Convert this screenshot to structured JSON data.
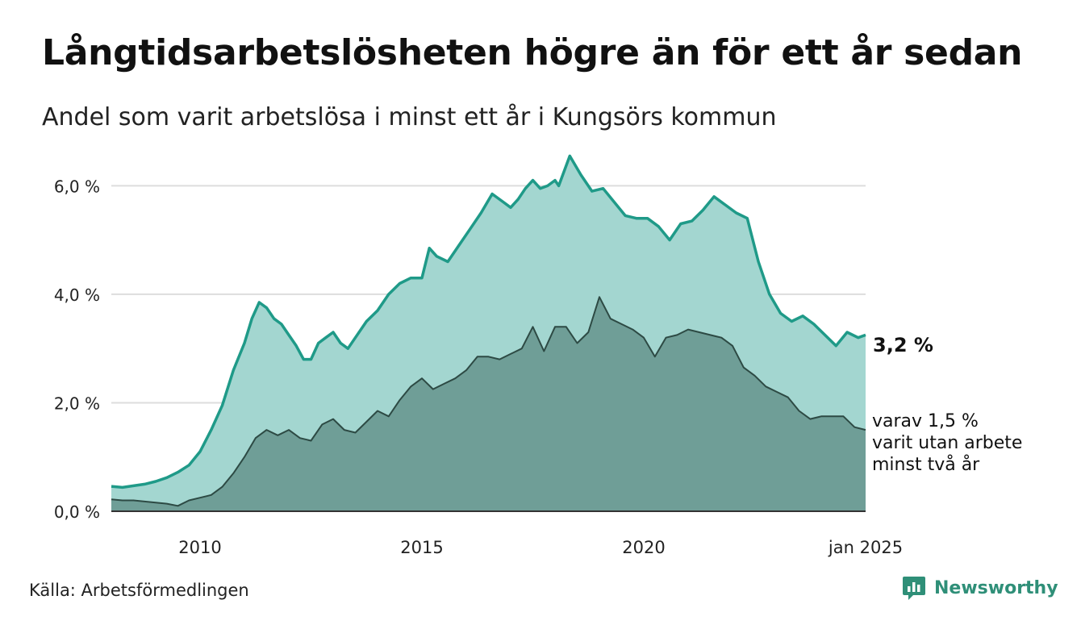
{
  "header": {
    "title": "Långtidsarbetslösheten högre än för ett år sedan",
    "subtitle": "Andel som varit arbetslösa i minst ett år i Kungsörs kommun"
  },
  "footer": {
    "source": "Källa: Arbetsförmedlingen",
    "brand": "Newsworthy"
  },
  "colors": {
    "series1_line": "#1f9a88",
    "series1_fill": "#a3d6d0",
    "series2_line": "#2d4a44",
    "series2_fill": "#6f9e97",
    "grid": "#dddddd",
    "brand": "#2f8f78"
  },
  "icons": {
    "brand_logo": "newsworthy-logo-icon"
  },
  "chart_data": {
    "type": "area",
    "x_start": "2008-01",
    "x_end": "2025-01",
    "ylim": [
      0,
      6.6
    ],
    "yticks": [
      0,
      2,
      4,
      6
    ],
    "ytick_labels": [
      "0,0 %",
      "2,0 %",
      "4,0 %",
      "6,0 %"
    ],
    "xticks": [
      {
        "date": "2010-01",
        "label": "2010"
      },
      {
        "date": "2015-01",
        "label": "2015"
      },
      {
        "date": "2020-01",
        "label": "2020"
      },
      {
        "date": "2025-01",
        "label": "jan 2025"
      }
    ],
    "grid": "horizontal",
    "series": [
      {
        "label": "3,2 %",
        "points": [
          [
            "2008-01",
            0.46
          ],
          [
            "2008-04",
            0.44
          ],
          [
            "2008-07",
            0.47
          ],
          [
            "2008-10",
            0.5
          ],
          [
            "2009-01",
            0.55
          ],
          [
            "2009-04",
            0.62
          ],
          [
            "2009-07",
            0.72
          ],
          [
            "2009-10",
            0.85
          ],
          [
            "2010-01",
            1.1
          ],
          [
            "2010-04",
            1.5
          ],
          [
            "2010-07",
            1.95
          ],
          [
            "2010-10",
            2.6
          ],
          [
            "2011-01",
            3.1
          ],
          [
            "2011-03",
            3.55
          ],
          [
            "2011-05",
            3.85
          ],
          [
            "2011-07",
            3.75
          ],
          [
            "2011-09",
            3.55
          ],
          [
            "2011-11",
            3.45
          ],
          [
            "2012-01",
            3.25
          ],
          [
            "2012-03",
            3.05
          ],
          [
            "2012-05",
            2.8
          ],
          [
            "2012-07",
            2.8
          ],
          [
            "2012-09",
            3.1
          ],
          [
            "2012-11",
            3.2
          ],
          [
            "2013-01",
            3.3
          ],
          [
            "2013-03",
            3.1
          ],
          [
            "2013-05",
            3.0
          ],
          [
            "2013-07",
            3.2
          ],
          [
            "2013-10",
            3.5
          ],
          [
            "2014-01",
            3.7
          ],
          [
            "2014-04",
            4.0
          ],
          [
            "2014-07",
            4.2
          ],
          [
            "2014-10",
            4.3
          ],
          [
            "2015-01",
            4.3
          ],
          [
            "2015-03",
            4.85
          ],
          [
            "2015-05",
            4.7
          ],
          [
            "2015-08",
            4.6
          ],
          [
            "2015-11",
            4.9
          ],
          [
            "2016-02",
            5.2
          ],
          [
            "2016-05",
            5.5
          ],
          [
            "2016-08",
            5.85
          ],
          [
            "2016-11",
            5.7
          ],
          [
            "2017-01",
            5.6
          ],
          [
            "2017-03",
            5.75
          ],
          [
            "2017-05",
            5.95
          ],
          [
            "2017-07",
            6.1
          ],
          [
            "2017-09",
            5.95
          ],
          [
            "2017-11",
            6.0
          ],
          [
            "2018-01",
            6.1
          ],
          [
            "2018-02",
            6.0
          ],
          [
            "2018-05",
            6.55
          ],
          [
            "2018-08",
            6.2
          ],
          [
            "2018-11",
            5.9
          ],
          [
            "2019-02",
            5.95
          ],
          [
            "2019-05",
            5.7
          ],
          [
            "2019-08",
            5.45
          ],
          [
            "2019-11",
            5.4
          ],
          [
            "2020-02",
            5.4
          ],
          [
            "2020-05",
            5.25
          ],
          [
            "2020-08",
            5.0
          ],
          [
            "2020-11",
            5.3
          ],
          [
            "2021-02",
            5.35
          ],
          [
            "2021-05",
            5.55
          ],
          [
            "2021-08",
            5.8
          ],
          [
            "2021-11",
            5.65
          ],
          [
            "2022-02",
            5.5
          ],
          [
            "2022-05",
            5.4
          ],
          [
            "2022-08",
            4.6
          ],
          [
            "2022-11",
            4.0
          ],
          [
            "2023-02",
            3.65
          ],
          [
            "2023-05",
            3.5
          ],
          [
            "2023-08",
            3.6
          ],
          [
            "2023-11",
            3.45
          ],
          [
            "2024-02",
            3.25
          ],
          [
            "2024-05",
            3.05
          ],
          [
            "2024-08",
            3.3
          ],
          [
            "2024-11",
            3.2
          ],
          [
            "2025-01",
            3.25
          ]
        ]
      },
      {
        "label": "varav 1,5 %\nvarit utan arbete\nminst två år",
        "points": [
          [
            "2008-01",
            0.22
          ],
          [
            "2008-04",
            0.2
          ],
          [
            "2008-07",
            0.2
          ],
          [
            "2008-10",
            0.18
          ],
          [
            "2009-01",
            0.16
          ],
          [
            "2009-04",
            0.14
          ],
          [
            "2009-07",
            0.1
          ],
          [
            "2009-10",
            0.2
          ],
          [
            "2010-01",
            0.25
          ],
          [
            "2010-04",
            0.3
          ],
          [
            "2010-07",
            0.45
          ],
          [
            "2010-10",
            0.7
          ],
          [
            "2011-01",
            1.0
          ],
          [
            "2011-04",
            1.35
          ],
          [
            "2011-07",
            1.5
          ],
          [
            "2011-10",
            1.4
          ],
          [
            "2012-01",
            1.5
          ],
          [
            "2012-04",
            1.35
          ],
          [
            "2012-07",
            1.3
          ],
          [
            "2012-10",
            1.6
          ],
          [
            "2013-01",
            1.7
          ],
          [
            "2013-04",
            1.5
          ],
          [
            "2013-07",
            1.45
          ],
          [
            "2013-10",
            1.65
          ],
          [
            "2014-01",
            1.85
          ],
          [
            "2014-04",
            1.75
          ],
          [
            "2014-07",
            2.05
          ],
          [
            "2014-10",
            2.3
          ],
          [
            "2015-01",
            2.45
          ],
          [
            "2015-04",
            2.25
          ],
          [
            "2015-07",
            2.35
          ],
          [
            "2015-10",
            2.45
          ],
          [
            "2016-01",
            2.6
          ],
          [
            "2016-04",
            2.85
          ],
          [
            "2016-07",
            2.85
          ],
          [
            "2016-10",
            2.8
          ],
          [
            "2017-01",
            2.9
          ],
          [
            "2017-04",
            3.0
          ],
          [
            "2017-07",
            3.4
          ],
          [
            "2017-10",
            2.95
          ],
          [
            "2018-01",
            3.4
          ],
          [
            "2018-04",
            3.4
          ],
          [
            "2018-07",
            3.1
          ],
          [
            "2018-10",
            3.3
          ],
          [
            "2019-01",
            3.95
          ],
          [
            "2019-04",
            3.55
          ],
          [
            "2019-07",
            3.45
          ],
          [
            "2019-10",
            3.35
          ],
          [
            "2020-01",
            3.2
          ],
          [
            "2020-04",
            2.85
          ],
          [
            "2020-07",
            3.2
          ],
          [
            "2020-10",
            3.25
          ],
          [
            "2021-01",
            3.35
          ],
          [
            "2021-04",
            3.3
          ],
          [
            "2021-07",
            3.25
          ],
          [
            "2021-10",
            3.2
          ],
          [
            "2022-01",
            3.05
          ],
          [
            "2022-04",
            2.65
          ],
          [
            "2022-07",
            2.5
          ],
          [
            "2022-10",
            2.3
          ],
          [
            "2023-01",
            2.2
          ],
          [
            "2023-04",
            2.1
          ],
          [
            "2023-07",
            1.85
          ],
          [
            "2023-10",
            1.7
          ],
          [
            "2024-01",
            1.75
          ],
          [
            "2024-04",
            1.75
          ],
          [
            "2024-07",
            1.75
          ],
          [
            "2024-10",
            1.55
          ],
          [
            "2025-01",
            1.5
          ]
        ]
      }
    ]
  }
}
